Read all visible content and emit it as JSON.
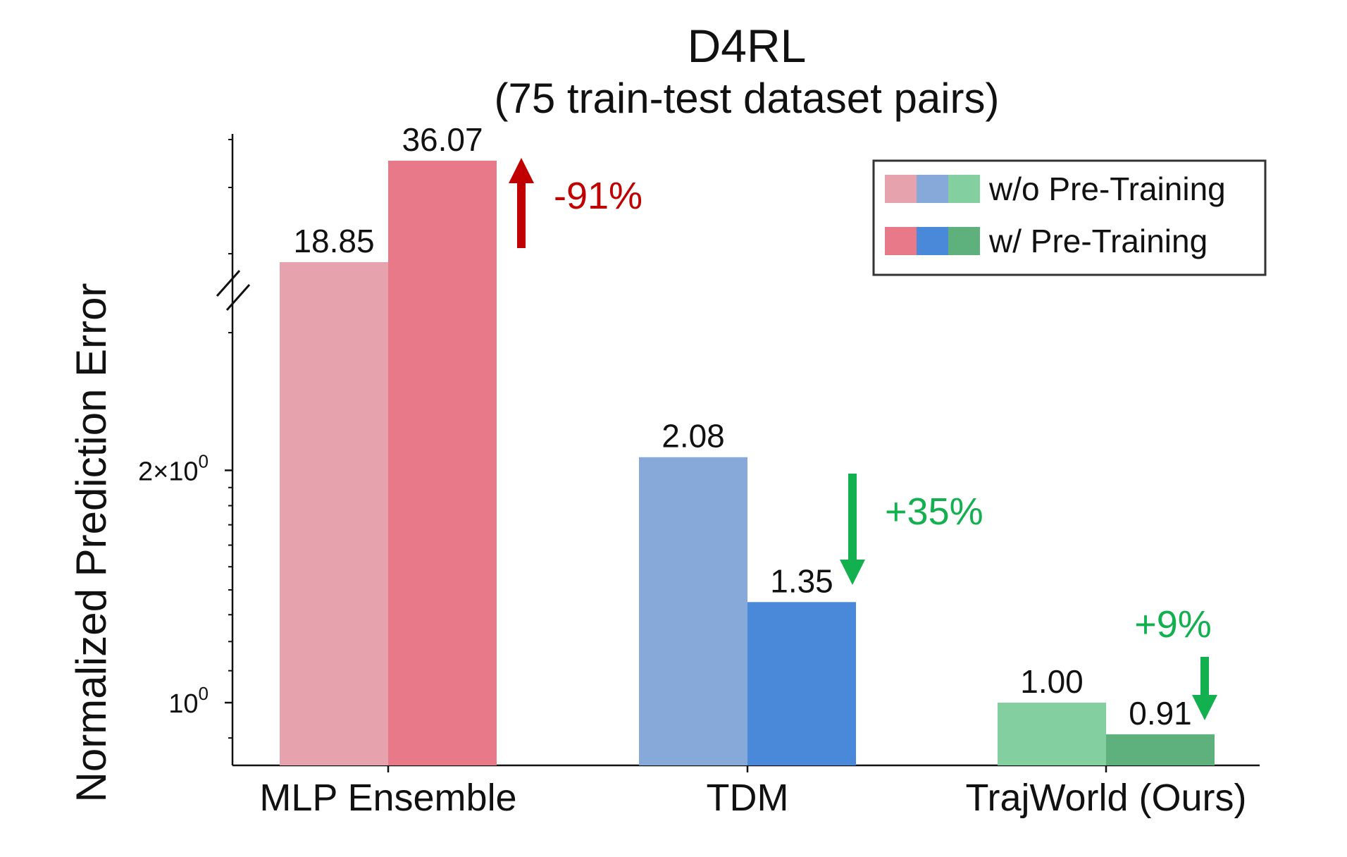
{
  "chart_data": {
    "type": "bar",
    "title": "D4RL",
    "subtitle": "(75 train-test dataset pairs)",
    "xlabel": "",
    "ylabel": "Normalized Prediction Error",
    "yscale": "log (broken axis)",
    "yticks": [
      {
        "value": 1,
        "label_base": "10",
        "label_exp": "0"
      },
      {
        "value": 2,
        "label_base": "2×10",
        "label_exp": "0"
      }
    ],
    "categories": [
      "MLP Ensemble",
      "TDM",
      "TrajWorld (Ours)"
    ],
    "series": [
      {
        "name": "w/o Pre-Training",
        "values": [
          18.85,
          2.08,
          1.0
        ],
        "labels": [
          "18.85",
          "2.08",
          "1.00"
        ],
        "colors": [
          "#E6A3AD",
          "#86A9D9",
          "#84CFA0"
        ]
      },
      {
        "name": "w/ Pre-Training",
        "values": [
          36.07,
          1.35,
          0.91
        ],
        "labels": [
          "36.07",
          "1.35",
          "0.91"
        ],
        "colors": [
          "#E77989",
          "#4A88D9",
          "#5EB07D"
        ]
      }
    ],
    "annotations": [
      {
        "category": "MLP Ensemble",
        "text": "-91%",
        "direction": "up",
        "color": "#C00000"
      },
      {
        "category": "TDM",
        "text": "+35%",
        "direction": "down",
        "color": "#12B04F"
      },
      {
        "category": "TrajWorld (Ours)",
        "text": "+9%",
        "direction": "down",
        "color": "#12B04F"
      }
    ],
    "legend": {
      "position": "top-right",
      "entries": [
        "w/o Pre-Training",
        "w/ Pre-Training"
      ]
    },
    "grid": false
  }
}
